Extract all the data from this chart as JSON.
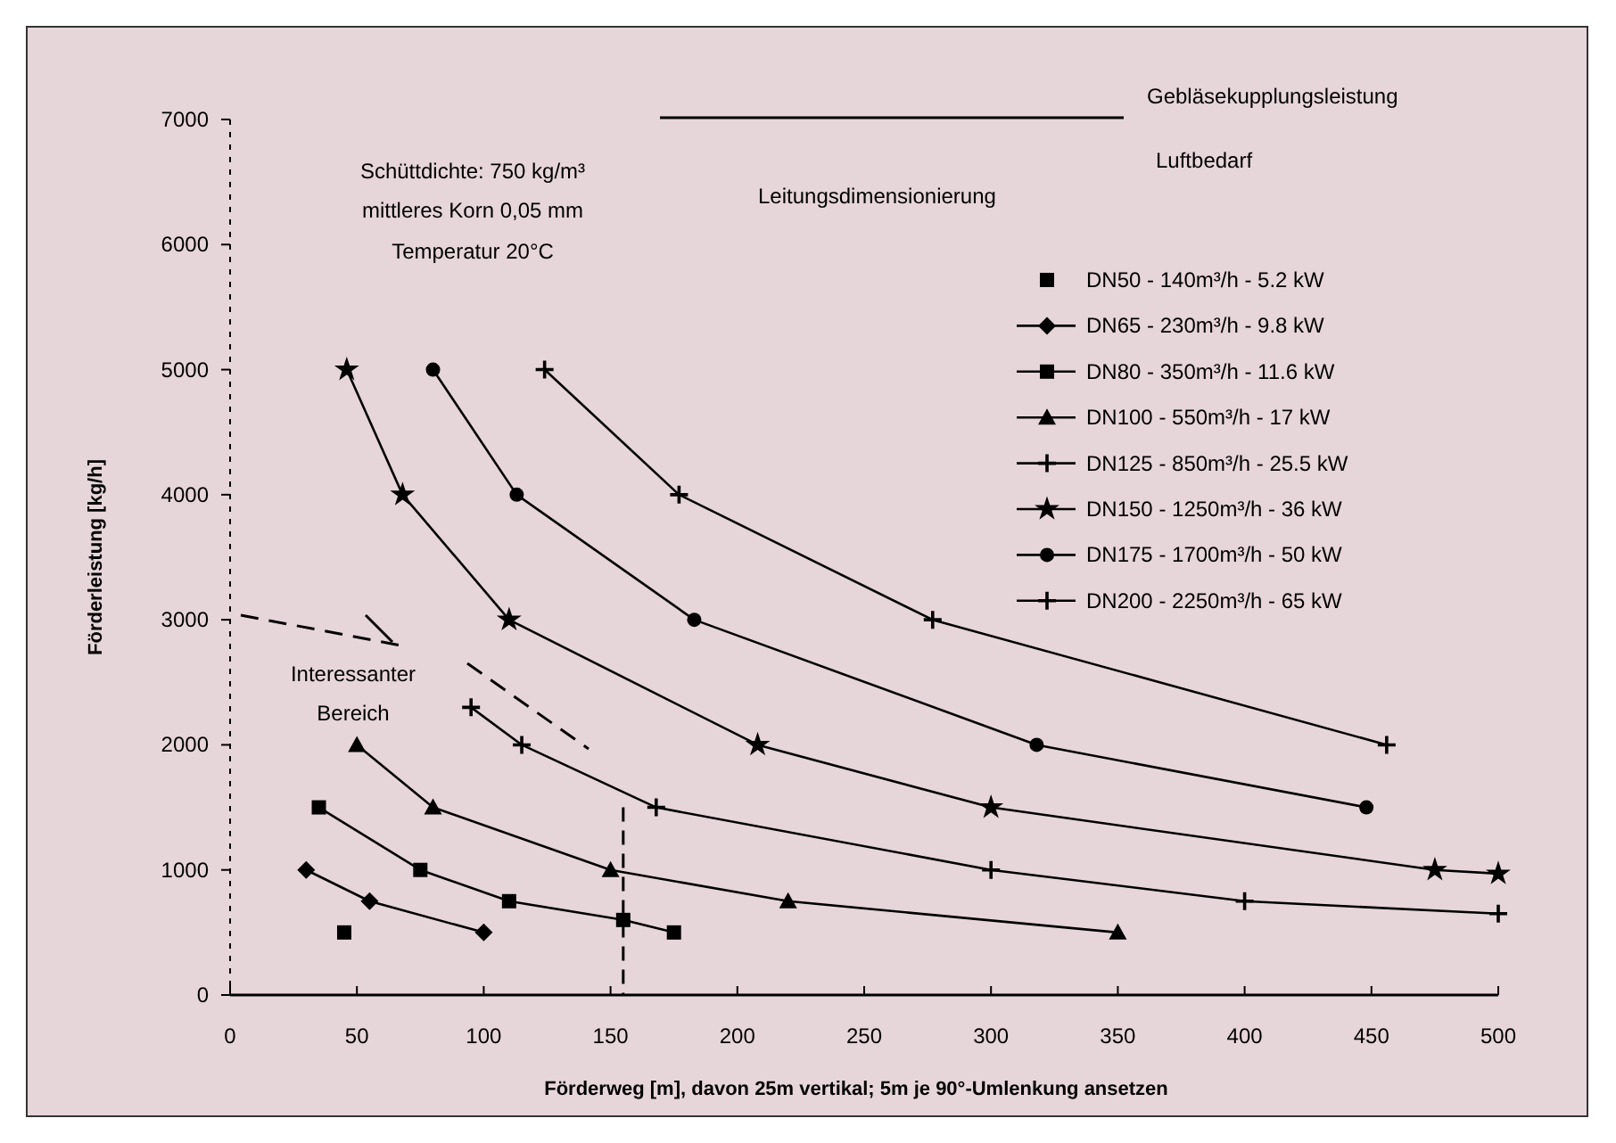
{
  "chart_data": {
    "type": "line",
    "xlabel": "Förderweg [m], davon 25m vertikal; 5m je 90°-Umlenkung ansetzen",
    "ylabel": "Förderleistung [kg/h]",
    "xlim": [
      0,
      500
    ],
    "xticks": [
      0,
      50,
      100,
      150,
      200,
      250,
      300,
      350,
      400,
      450,
      500
    ],
    "ylim": [
      0,
      7000
    ],
    "yticks": [
      0,
      1000,
      2000,
      3000,
      4000,
      5000,
      6000,
      7000
    ],
    "legend": "top right",
    "grid": false,
    "line_style": "solid",
    "series": [
      {
        "name": "DN50 - 140m³/h - 5.2 kW",
        "color": "#000000",
        "type": "scatter",
        "marker": "square",
        "x": [
          45
        ],
        "values": [
          500
        ]
      },
      {
        "name": "DN65 - 230m³/h - 9.8 kW",
        "color": "#000000",
        "marker": "diamond",
        "x": [
          30,
          55,
          100
        ],
        "values": [
          1000,
          750,
          500
        ]
      },
      {
        "name": "DN80 - 350m³/h - 11.6 kW",
        "color": "#000000",
        "marker": "square",
        "x": [
          35,
          75,
          110,
          155,
          175
        ],
        "values": [
          1500,
          1000,
          750,
          600,
          500
        ]
      },
      {
        "name": "DN100 - 550m³/h - 17 kW",
        "color": "#000000",
        "marker": "triangle",
        "x": [
          50,
          80,
          150,
          220,
          350
        ],
        "values": [
          2000,
          1500,
          1000,
          750,
          500
        ]
      },
      {
        "name": "DN125 - 850m³/h - 25.5 kW",
        "color": "#000000",
        "marker": "cross",
        "x": [
          95,
          115,
          168,
          300,
          400,
          500
        ],
        "values": [
          2300,
          2000,
          1500,
          1000,
          750,
          650
        ]
      },
      {
        "name": "DN150 - 1250m³/h - 36 kW",
        "color": "#000000",
        "marker": "star",
        "x": [
          46,
          68,
          110,
          208,
          300,
          475,
          500
        ],
        "values": [
          5000,
          4000,
          3000,
          2000,
          1500,
          1000,
          970
        ]
      },
      {
        "name": "DN175 - 1700m³/h - 50 kW",
        "color": "#000000",
        "marker": "circle",
        "x": [
          80,
          113,
          183,
          318,
          448
        ],
        "values": [
          5000,
          4000,
          3000,
          2000,
          1500
        ]
      },
      {
        "name": "DN200 - 2250m³/h - 65 kW",
        "color": "#000000",
        "marker": "cross",
        "x": [
          124,
          177,
          277,
          456
        ],
        "values": [
          5000,
          4000,
          3000,
          2000
        ]
      }
    ],
    "ref_lines": [
      {
        "axis": "x",
        "value": 155,
        "line_style": "dashed",
        "color": "#000000"
      }
    ],
    "annotations": [
      "Gebläsekupplungsleistung",
      "Luftbedarf",
      "Leitungsdimensionierung",
      "Schüttdichte: 750 kg/m³",
      "mittleres Korn 0,05 mm",
      "Temperatur 20°C",
      "Interessanter",
      "Bereich"
    ]
  }
}
